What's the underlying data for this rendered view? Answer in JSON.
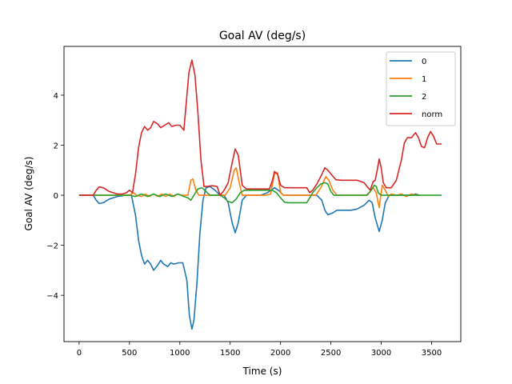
{
  "chart_data": {
    "type": "line",
    "title": "Goal AV (deg/s)",
    "xlabel": "Time (s)",
    "ylabel": "Goal AV (deg/s)",
    "xlim": [
      -150,
      3790
    ],
    "ylim": [
      -5.85,
      5.95
    ],
    "x_ticks": [
      0,
      500,
      1000,
      1500,
      2000,
      2500,
      3000,
      3500
    ],
    "x_tick_labels": [
      "0",
      "500",
      "1000",
      "1500",
      "2000",
      "2500",
      "3000",
      "3500"
    ],
    "y_ticks": [
      -4,
      -2,
      0,
      2,
      4
    ],
    "y_tick_labels": [
      "−4",
      "−2",
      "0",
      "2",
      "4"
    ],
    "legend_position": "top-right",
    "grid": false,
    "series": [
      {
        "name": "0",
        "color": "#1f77b4",
        "points": [
          [
            0,
            0
          ],
          [
            140,
            0
          ],
          [
            170,
            -0.2
          ],
          [
            200,
            -0.33
          ],
          [
            240,
            -0.3
          ],
          [
            300,
            -0.15
          ],
          [
            380,
            -0.05
          ],
          [
            460,
            0
          ],
          [
            520,
            0
          ],
          [
            560,
            -0.8
          ],
          [
            590,
            -1.8
          ],
          [
            620,
            -2.4
          ],
          [
            650,
            -2.75
          ],
          [
            680,
            -2.6
          ],
          [
            710,
            -2.75
          ],
          [
            740,
            -3.0
          ],
          [
            780,
            -2.8
          ],
          [
            810,
            -2.6
          ],
          [
            840,
            -2.75
          ],
          [
            880,
            -2.85
          ],
          [
            910,
            -2.7
          ],
          [
            940,
            -2.75
          ],
          [
            990,
            -2.7
          ],
          [
            1030,
            -2.7
          ],
          [
            1070,
            -3.4
          ],
          [
            1095,
            -4.8
          ],
          [
            1120,
            -5.35
          ],
          [
            1140,
            -5.0
          ],
          [
            1170,
            -3.5
          ],
          [
            1200,
            -1.5
          ],
          [
            1230,
            -0.2
          ],
          [
            1260,
            0.3
          ],
          [
            1300,
            0.35
          ],
          [
            1350,
            0.2
          ],
          [
            1400,
            0
          ],
          [
            1440,
            0
          ],
          [
            1480,
            -0.3
          ],
          [
            1520,
            -1.1
          ],
          [
            1550,
            -1.5
          ],
          [
            1580,
            -1.1
          ],
          [
            1620,
            -0.2
          ],
          [
            1660,
            0
          ],
          [
            1800,
            0
          ],
          [
            1870,
            0.1
          ],
          [
            1940,
            0.3
          ],
          [
            1980,
            0.2
          ],
          [
            2030,
            0
          ],
          [
            2260,
            0
          ],
          [
            2360,
            0
          ],
          [
            2410,
            -0.2
          ],
          [
            2440,
            -0.6
          ],
          [
            2470,
            -0.78
          ],
          [
            2520,
            -0.7
          ],
          [
            2560,
            -0.6
          ],
          [
            2700,
            -0.6
          ],
          [
            2760,
            -0.55
          ],
          [
            2830,
            -0.4
          ],
          [
            2880,
            -0.2
          ],
          [
            2910,
            -0.3
          ],
          [
            2940,
            -0.9
          ],
          [
            2980,
            -1.45
          ],
          [
            3010,
            -1.0
          ],
          [
            3040,
            -0.3
          ],
          [
            3080,
            0
          ],
          [
            3200,
            0
          ],
          [
            3300,
            0
          ],
          [
            3340,
            0.05
          ],
          [
            3380,
            0
          ]
        ]
      },
      {
        "name": "1",
        "color": "#ff7f0e",
        "points": [
          [
            0,
            0
          ],
          [
            500,
            0
          ],
          [
            540,
            0.1
          ],
          [
            570,
            0
          ],
          [
            620,
            -0.05
          ],
          [
            660,
            0.05
          ],
          [
            700,
            -0.05
          ],
          [
            740,
            0.05
          ],
          [
            780,
            -0.05
          ],
          [
            820,
            0.05
          ],
          [
            860,
            -0.05
          ],
          [
            900,
            0.05
          ],
          [
            940,
            -0.05
          ],
          [
            980,
            0.05
          ],
          [
            1020,
            0
          ],
          [
            1080,
            0
          ],
          [
            1110,
            0.6
          ],
          [
            1130,
            0.65
          ],
          [
            1160,
            0.2
          ],
          [
            1190,
            0
          ],
          [
            1240,
            0
          ],
          [
            1300,
            0
          ],
          [
            1400,
            0
          ],
          [
            1450,
            0
          ],
          [
            1500,
            0.3
          ],
          [
            1540,
            1.0
          ],
          [
            1560,
            1.1
          ],
          [
            1590,
            0.5
          ],
          [
            1620,
            0
          ],
          [
            1850,
            0
          ],
          [
            1900,
            0.05
          ],
          [
            1940,
            0.85
          ],
          [
            1970,
            0.9
          ],
          [
            2000,
            0.1
          ],
          [
            2030,
            0
          ],
          [
            2350,
            0
          ],
          [
            2400,
            0.3
          ],
          [
            2450,
            0.75
          ],
          [
            2480,
            0.6
          ],
          [
            2520,
            0.2
          ],
          [
            2560,
            0
          ],
          [
            2850,
            0
          ],
          [
            2880,
            0.1
          ],
          [
            2920,
            0.3
          ],
          [
            2950,
            0.1
          ],
          [
            2980,
            -0.5
          ],
          [
            3010,
            0.4
          ],
          [
            3040,
            0.2
          ],
          [
            3070,
            -0.05
          ],
          [
            3100,
            0.05
          ],
          [
            3150,
            0
          ],
          [
            3200,
            0.05
          ],
          [
            3250,
            -0.05
          ],
          [
            3300,
            0.05
          ],
          [
            3350,
            0
          ],
          [
            3370,
            0
          ]
        ]
      },
      {
        "name": "2",
        "color": "#2ca02c",
        "points": [
          [
            0,
            0
          ],
          [
            500,
            0
          ],
          [
            560,
            -0.05
          ],
          [
            620,
            0.05
          ],
          [
            680,
            -0.05
          ],
          [
            740,
            0.05
          ],
          [
            800,
            -0.05
          ],
          [
            860,
            0.05
          ],
          [
            920,
            -0.05
          ],
          [
            980,
            0.05
          ],
          [
            1040,
            -0.05
          ],
          [
            1080,
            -0.1
          ],
          [
            1110,
            -0.2
          ],
          [
            1140,
            0
          ],
          [
            1180,
            0.25
          ],
          [
            1220,
            0.3
          ],
          [
            1260,
            0.15
          ],
          [
            1300,
            0
          ],
          [
            1400,
            0
          ],
          [
            1440,
            -0.1
          ],
          [
            1480,
            -0.25
          ],
          [
            1520,
            -0.3
          ],
          [
            1560,
            -0.15
          ],
          [
            1600,
            0.1
          ],
          [
            1640,
            0.2
          ],
          [
            1700,
            0.2
          ],
          [
            1800,
            0.2
          ],
          [
            1880,
            0.2
          ],
          [
            1920,
            0.2
          ],
          [
            1960,
            0.1
          ],
          [
            2000,
            -0.1
          ],
          [
            2040,
            -0.28
          ],
          [
            2080,
            -0.3
          ],
          [
            2200,
            -0.3
          ],
          [
            2260,
            -0.3
          ],
          [
            2290,
            -0.1
          ],
          [
            2320,
            0.1
          ],
          [
            2360,
            0.3
          ],
          [
            2400,
            0.45
          ],
          [
            2440,
            0.5
          ],
          [
            2470,
            0.45
          ],
          [
            2500,
            0.15
          ],
          [
            2530,
            0
          ],
          [
            2860,
            0
          ],
          [
            2900,
            0.2
          ],
          [
            2930,
            0.4
          ],
          [
            2950,
            0.35
          ],
          [
            2970,
            0.1
          ],
          [
            3000,
            0
          ],
          [
            3300,
            0
          ],
          [
            3600,
            0
          ]
        ]
      },
      {
        "name": "norm",
        "color": "#d62728",
        "points": [
          [
            0,
            0
          ],
          [
            140,
            0
          ],
          [
            170,
            0.2
          ],
          [
            200,
            0.33
          ],
          [
            240,
            0.3
          ],
          [
            300,
            0.15
          ],
          [
            380,
            0.05
          ],
          [
            430,
            0.05
          ],
          [
            470,
            0.1
          ],
          [
            500,
            0.2
          ],
          [
            530,
            0.1
          ],
          [
            560,
            0.85
          ],
          [
            590,
            1.9
          ],
          [
            620,
            2.5
          ],
          [
            650,
            2.75
          ],
          [
            680,
            2.6
          ],
          [
            710,
            2.7
          ],
          [
            740,
            2.95
          ],
          [
            780,
            2.85
          ],
          [
            810,
            2.7
          ],
          [
            850,
            2.8
          ],
          [
            890,
            2.9
          ],
          [
            920,
            2.75
          ],
          [
            960,
            2.8
          ],
          [
            1000,
            2.8
          ],
          [
            1040,
            2.6
          ],
          [
            1060,
            3.5
          ],
          [
            1090,
            4.9
          ],
          [
            1120,
            5.4
          ],
          [
            1150,
            4.8
          ],
          [
            1180,
            3.3
          ],
          [
            1210,
            1.4
          ],
          [
            1240,
            0.35
          ],
          [
            1270,
            0.35
          ],
          [
            1320,
            0.38
          ],
          [
            1370,
            0.35
          ],
          [
            1400,
            0
          ],
          [
            1440,
            0.2
          ],
          [
            1480,
            0.5
          ],
          [
            1520,
            1.3
          ],
          [
            1550,
            1.85
          ],
          [
            1580,
            1.6
          ],
          [
            1620,
            0.4
          ],
          [
            1660,
            0.25
          ],
          [
            1700,
            0.25
          ],
          [
            1800,
            0.25
          ],
          [
            1850,
            0.25
          ],
          [
            1890,
            0.25
          ],
          [
            1920,
            0.6
          ],
          [
            1940,
            0.95
          ],
          [
            1970,
            0.85
          ],
          [
            2000,
            0.4
          ],
          [
            2040,
            0.3
          ],
          [
            2100,
            0.3
          ],
          [
            2200,
            0.3
          ],
          [
            2260,
            0.3
          ],
          [
            2290,
            0.1
          ],
          [
            2320,
            0.2
          ],
          [
            2360,
            0.45
          ],
          [
            2400,
            0.75
          ],
          [
            2440,
            1.1
          ],
          [
            2470,
            1.0
          ],
          [
            2510,
            0.8
          ],
          [
            2550,
            0.62
          ],
          [
            2600,
            0.6
          ],
          [
            2700,
            0.6
          ],
          [
            2760,
            0.6
          ],
          [
            2830,
            0.5
          ],
          [
            2860,
            0.35
          ],
          [
            2890,
            0.2
          ],
          [
            2920,
            0.55
          ],
          [
            2940,
            0.6
          ],
          [
            2960,
            1.0
          ],
          [
            2980,
            1.45
          ],
          [
            3000,
            1.1
          ],
          [
            3020,
            0.5
          ],
          [
            3050,
            0.3
          ],
          [
            3100,
            0.3
          ],
          [
            3150,
            0.6
          ],
          [
            3200,
            1.4
          ],
          [
            3230,
            2.1
          ],
          [
            3260,
            2.3
          ],
          [
            3300,
            2.3
          ],
          [
            3340,
            2.5
          ],
          [
            3370,
            2.3
          ],
          [
            3400,
            1.95
          ],
          [
            3430,
            1.9
          ],
          [
            3460,
            2.3
          ],
          [
            3490,
            2.55
          ],
          [
            3520,
            2.35
          ],
          [
            3550,
            2.05
          ],
          [
            3580,
            2.05
          ],
          [
            3600,
            2.05
          ]
        ]
      }
    ]
  }
}
